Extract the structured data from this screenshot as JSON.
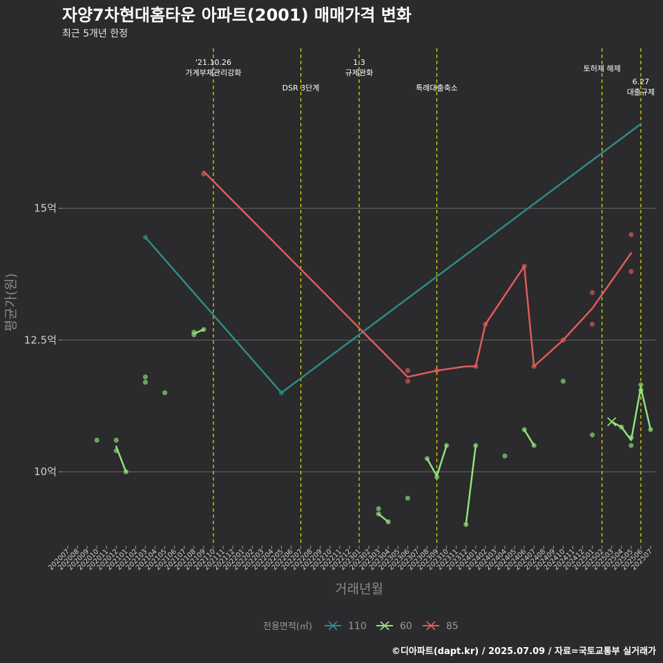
{
  "chart_data": {
    "type": "line",
    "title": "자양7차현대홈타운 아파트(2001) 매매가격 변화",
    "subtitle": "최근 5개년 한정",
    "xlabel": "거래년월",
    "ylabel": "평균가(원)",
    "caption": "©디아파트(dapt.kr) / 2025.07.09 / 자료=국토교통부 실거래가",
    "ylim": [
      8.6,
      18.1
    ],
    "yticks": [
      {
        "value": 10,
        "label": "10억"
      },
      {
        "value": 12.5,
        "label": "12.5억"
      },
      {
        "value": 15,
        "label": "15억"
      }
    ],
    "x_categories": [
      "202007",
      "202008",
      "202009",
      "202010",
      "202011",
      "202012",
      "202101",
      "202102",
      "202103",
      "202104",
      "202105",
      "202106",
      "202107",
      "202108",
      "202109",
      "202110",
      "202111",
      "202112",
      "202201",
      "202202",
      "202203",
      "202204",
      "202205",
      "202206",
      "202207",
      "202208",
      "202209",
      "202210",
      "202211",
      "202212",
      "202301",
      "202302",
      "202303",
      "202304",
      "202305",
      "202306",
      "202307",
      "202308",
      "202309",
      "202310",
      "202311",
      "202312",
      "202401",
      "202402",
      "202403",
      "202404",
      "202405",
      "202406",
      "202407",
      "202408",
      "202409",
      "202410",
      "202411",
      "202412",
      "202501",
      "202502",
      "202503",
      "202504",
      "202505",
      "202506",
      "202507"
    ],
    "events": [
      {
        "month": "202110",
        "lines": [
          "'21.10.26",
          "가계부채관리강화"
        ]
      },
      {
        "month": "202207",
        "lines": [
          "DSR 3단계"
        ]
      },
      {
        "month": "202301",
        "lines": [
          "1.3",
          "규제완화"
        ]
      },
      {
        "month": "202309",
        "lines": [
          "특례대출축소"
        ]
      },
      {
        "month": "202502",
        "lines": [
          "토허제 해제"
        ]
      },
      {
        "month": "202506",
        "lines": [
          "6.27",
          "대출규제"
        ]
      }
    ],
    "legend": {
      "title": "전용면적(㎡)",
      "position": "bottom"
    },
    "series": [
      {
        "name": "110",
        "color": "#2e8c8c",
        "line": [
          [
            "202103",
            14.45
          ],
          [
            "202205",
            11.5
          ],
          [
            "202506",
            16.6
          ]
        ],
        "points": [
          [
            "202103",
            14.45
          ],
          [
            "202205",
            11.5
          ]
        ]
      },
      {
        "name": "60",
        "color": "#90e47b",
        "line_segments": [
          [
            [
              "202108",
              12.62
            ],
            [
              "202109",
              12.7
            ]
          ],
          [
            [
              "202012",
              10.48
            ],
            [
              "202101",
              10.0
            ]
          ],
          [
            [
              "202303",
              9.2
            ],
            [
              "202304",
              9.05
            ]
          ],
          [
            [
              "202308",
              10.25
            ],
            [
              "202309",
              9.92
            ],
            [
              "202310",
              10.5
            ]
          ],
          [
            [
              "202312",
              9.0
            ],
            [
              "202401",
              10.5
            ]
          ],
          [
            [
              "202406",
              10.8
            ],
            [
              "202407",
              10.5
            ]
          ],
          [
            [
              "202503",
              10.95
            ],
            [
              "202504",
              10.85
            ],
            [
              "202505",
              10.6
            ],
            [
              "202506",
              11.6
            ],
            [
              "202507",
              10.8
            ]
          ]
        ],
        "points": [
          [
            "202010",
            10.6
          ],
          [
            "202012",
            10.6
          ],
          [
            "202012",
            10.4
          ],
          [
            "202101",
            10.0
          ],
          [
            "202103",
            11.8
          ],
          [
            "202103",
            11.7
          ],
          [
            "202105",
            11.5
          ],
          [
            "202108",
            12.65
          ],
          [
            "202108",
            12.6
          ],
          [
            "202109",
            12.7
          ],
          [
            "202303",
            9.3
          ],
          [
            "202303",
            9.2
          ],
          [
            "202304",
            9.05
          ],
          [
            "202306",
            9.5
          ],
          [
            "202308",
            10.25
          ],
          [
            "202309",
            9.9
          ],
          [
            "202310",
            10.5
          ],
          [
            "202312",
            9.0
          ],
          [
            "202401",
            10.5
          ],
          [
            "202404",
            10.3
          ],
          [
            "202406",
            10.8
          ],
          [
            "202407",
            10.5
          ],
          [
            "202410",
            11.72
          ],
          [
            "202501",
            10.7
          ],
          [
            "202504",
            10.85
          ],
          [
            "202505",
            10.65
          ],
          [
            "202505",
            10.5
          ],
          [
            "202506",
            11.65
          ],
          [
            "202506",
            11.55
          ],
          [
            "202507",
            10.8
          ]
        ],
        "cross": [
          [
            "202503",
            10.95
          ]
        ]
      },
      {
        "name": "85",
        "color": "#e05c5c",
        "line": [
          [
            "202109",
            15.7
          ],
          [
            "202306",
            11.8
          ],
          [
            "202309",
            11.92
          ],
          [
            "202312",
            12.0
          ],
          [
            "202401",
            12.0
          ],
          [
            "202402",
            12.8
          ],
          [
            "202406",
            13.9
          ],
          [
            "202407",
            12.0
          ],
          [
            "202410",
            12.5
          ],
          [
            "202501",
            13.1
          ],
          [
            "202505",
            14.15
          ]
        ],
        "points": [
          [
            "202109",
            15.65
          ],
          [
            "202306",
            11.92
          ],
          [
            "202306",
            11.72
          ],
          [
            "202309",
            11.92
          ],
          [
            "202401",
            12.0
          ],
          [
            "202402",
            12.8
          ],
          [
            "202406",
            13.9
          ],
          [
            "202407",
            12.0
          ],
          [
            "202410",
            12.5
          ],
          [
            "202501",
            13.4
          ],
          [
            "202501",
            12.8
          ],
          [
            "202505",
            14.5
          ],
          [
            "202505",
            13.8
          ]
        ]
      }
    ]
  }
}
